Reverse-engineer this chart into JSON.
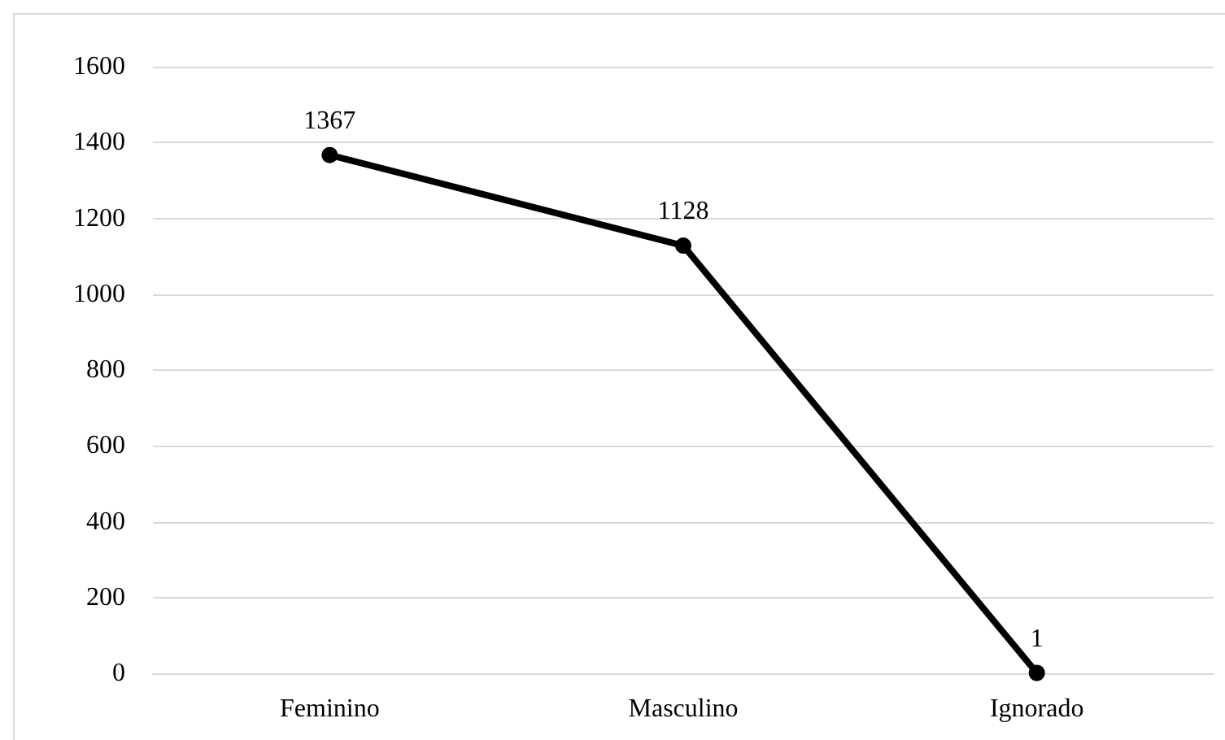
{
  "chart_data": {
    "type": "line",
    "categories": [
      "Feminino",
      "Masculino",
      "Ignorado"
    ],
    "series": [
      {
        "color": "#000000",
        "values": [
          1367,
          1128,
          1
        ]
      }
    ],
    "ylim": [
      0,
      1600
    ],
    "yticks": [
      0,
      200,
      400,
      600,
      800,
      1000,
      1200,
      1400,
      1600
    ],
    "grid": "y",
    "marker": "circle",
    "line_style": "solid",
    "data_labels": true
  }
}
